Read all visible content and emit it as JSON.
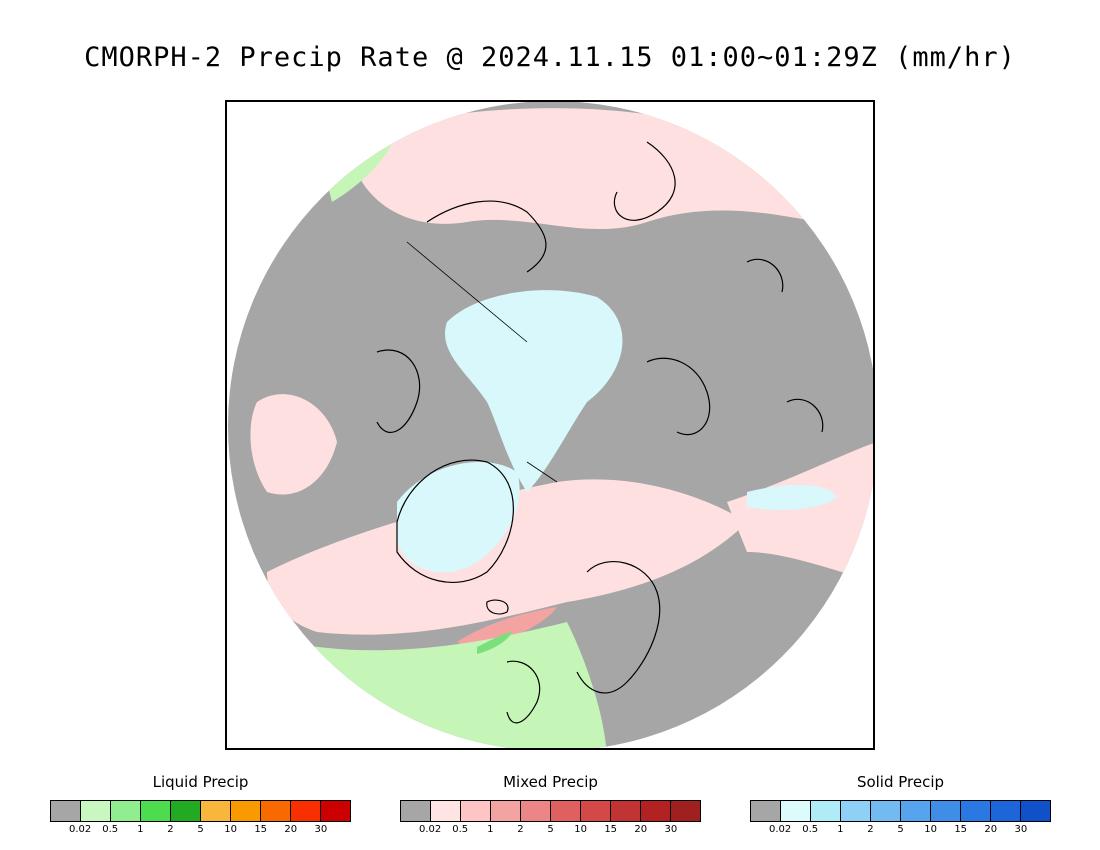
{
  "title": "CMORPH-2 Precip Rate @ 2024.11.15 01:00~01:29Z (mm/hr)",
  "map": {
    "projection": "polar stereographic (north pole)",
    "colors": {
      "no_precip": "#a6a6a6",
      "mixed_light": "#ffe0e0",
      "solid_light": "#d8f8fb",
      "liquid_light": "#c6f5b8",
      "liquid_mid": "#7be07b",
      "mixed_mid": "#f4a3a3",
      "coastline": "#000000"
    }
  },
  "legends": [
    {
      "name": "Liquid Precip",
      "colors": [
        "#a6a6a6",
        "#c9f7c0",
        "#90ee90",
        "#4ddc4d",
        "#22aa22",
        "#f8b63c",
        "#f89a00",
        "#f86a00",
        "#f83000",
        "#cc0000"
      ],
      "ticks": [
        "0.02",
        "0.5",
        "1",
        "2",
        "5",
        "10",
        "15",
        "20",
        "30"
      ]
    },
    {
      "name": "Mixed Precip",
      "colors": [
        "#a6a6a6",
        "#ffe4e4",
        "#ffc4c4",
        "#f4a3a3",
        "#ec8585",
        "#e06060",
        "#d44848",
        "#c23434",
        "#b22222",
        "#a02020"
      ],
      "ticks": [
        "0.02",
        "0.5",
        "1",
        "2",
        "5",
        "10",
        "15",
        "20",
        "30"
      ]
    },
    {
      "name": "Solid Precip",
      "colors": [
        "#a6a6a6",
        "#dcfcfc",
        "#b0ecf8",
        "#8ed0f6",
        "#72baf2",
        "#56a4ee",
        "#3e8ee8",
        "#2a78e2",
        "#1c66da",
        "#1050c8"
      ],
      "ticks": [
        "0.02",
        "0.5",
        "1",
        "2",
        "5",
        "10",
        "15",
        "20",
        "30"
      ]
    }
  ]
}
